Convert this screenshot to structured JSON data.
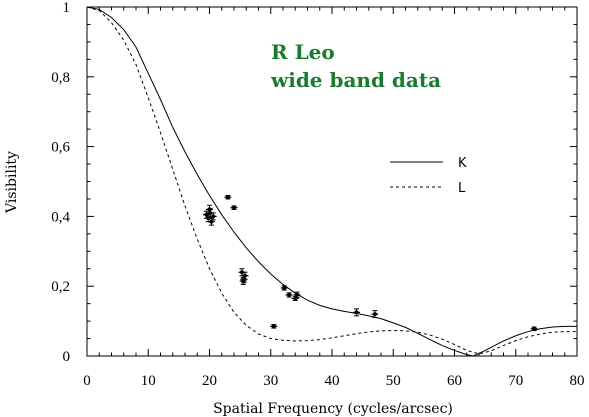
{
  "chart_data": {
    "type": "scatter",
    "xlabel": "Spatial Frequency (cycles/arcsec)",
    "ylabel": "Visibility",
    "xlim": [
      0,
      80
    ],
    "ylim": [
      0,
      1
    ],
    "x_ticks": [
      0,
      10,
      20,
      30,
      40,
      50,
      60,
      70,
      80
    ],
    "x_tick_labels": [
      "0",
      "10",
      "20",
      "30",
      "40",
      "50",
      "60",
      "70",
      "80"
    ],
    "y_ticks": [
      0,
      0.2,
      0.4,
      0.6,
      0.8,
      1
    ],
    "y_tick_labels": [
      "0",
      "0,2",
      "0,4",
      "0,6",
      "0,8",
      "1"
    ],
    "annotation": {
      "lines": [
        "R Leo",
        "wide band data"
      ],
      "color": "#1a7a2e"
    },
    "legend": {
      "position": "right",
      "entries": [
        {
          "label": "K",
          "style": "solid"
        },
        {
          "label": "L",
          "style": "dashed"
        }
      ]
    },
    "series": [
      {
        "name": "K",
        "kind": "line",
        "style": "solid",
        "x": [
          0,
          2,
          4,
          6,
          8,
          10,
          12,
          14,
          16,
          18,
          20,
          22,
          24,
          26,
          28,
          30,
          32,
          34,
          36,
          38,
          40,
          42,
          44,
          46,
          48,
          50,
          52,
          54,
          56,
          58,
          60,
          62,
          63,
          64,
          66,
          68,
          70,
          72,
          74,
          76,
          78,
          80
        ],
        "y": [
          1.0,
          0.993,
          0.97,
          0.935,
          0.885,
          0.81,
          0.735,
          0.655,
          0.585,
          0.52,
          0.46,
          0.405,
          0.355,
          0.31,
          0.27,
          0.235,
          0.205,
          0.18,
          0.16,
          0.145,
          0.135,
          0.128,
          0.122,
          0.115,
          0.107,
          0.095,
          0.082,
          0.065,
          0.047,
          0.03,
          0.016,
          0.004,
          0.0,
          0.007,
          0.025,
          0.043,
          0.058,
          0.07,
          0.078,
          0.083,
          0.085,
          0.085
        ]
      },
      {
        "name": "L",
        "kind": "line",
        "style": "dashed",
        "x": [
          0,
          2,
          4,
          6,
          8,
          10,
          12,
          14,
          16,
          18,
          20,
          22,
          24,
          26,
          28,
          30,
          32,
          34,
          36,
          38,
          40,
          42,
          44,
          46,
          48,
          50,
          52,
          54,
          56,
          58,
          60,
          62,
          64,
          66,
          68,
          70,
          72,
          74,
          76,
          78,
          80
        ],
        "y": [
          1.0,
          0.99,
          0.955,
          0.905,
          0.835,
          0.74,
          0.64,
          0.535,
          0.43,
          0.335,
          0.25,
          0.18,
          0.125,
          0.088,
          0.063,
          0.05,
          0.045,
          0.043,
          0.044,
          0.047,
          0.052,
          0.058,
          0.064,
          0.069,
          0.072,
          0.073,
          0.072,
          0.068,
          0.06,
          0.048,
          0.033,
          0.016,
          0.006,
          0.015,
          0.03,
          0.044,
          0.055,
          0.063,
          0.068,
          0.07,
          0.07
        ]
      },
      {
        "name": "data",
        "kind": "points",
        "x": [
          19.5,
          19.8,
          20.1,
          20.3,
          20.6,
          20.0,
          23.0,
          24.0,
          25.3,
          25.5,
          25.6,
          25.8,
          30.5,
          32.2,
          33.0,
          34.0,
          34.3,
          44.0,
          47.0,
          73.0
        ],
        "y": [
          0.405,
          0.395,
          0.41,
          0.385,
          0.4,
          0.42,
          0.455,
          0.425,
          0.24,
          0.215,
          0.22,
          0.23,
          0.085,
          0.195,
          0.175,
          0.165,
          0.175,
          0.125,
          0.12,
          0.078
        ],
        "err": [
          0.01,
          0.01,
          0.012,
          0.01,
          0.01,
          0.012,
          0.005,
          0.005,
          0.01,
          0.01,
          0.01,
          0.01,
          0.005,
          0.006,
          0.006,
          0.006,
          0.008,
          0.01,
          0.01,
          0.005
        ]
      }
    ]
  }
}
